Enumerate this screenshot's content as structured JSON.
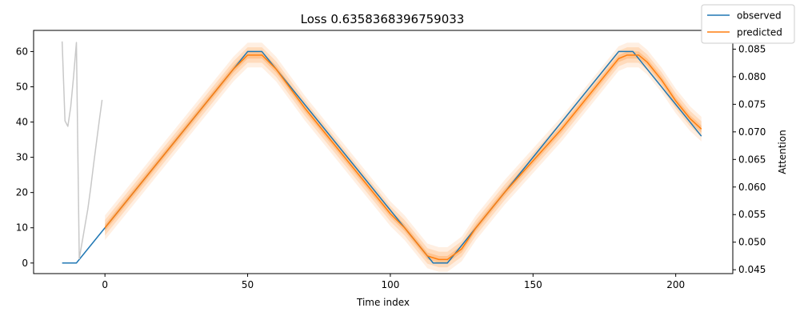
{
  "chart_data": {
    "type": "line",
    "title": "Loss 0.6358368396759033",
    "xlabel": "Time index",
    "ylabel": "",
    "y2label": "Attention",
    "xlim": [
      -25,
      220
    ],
    "ylim": [
      -3,
      66
    ],
    "y2lim": [
      0.0443,
      0.0884
    ],
    "x_ticks": [
      0,
      50,
      100,
      150,
      200
    ],
    "y_ticks": [
      0,
      10,
      20,
      30,
      40,
      50,
      60
    ],
    "y2_ticks": [
      0.045,
      0.05,
      0.055,
      0.06,
      0.065,
      0.07,
      0.075,
      0.08,
      0.085
    ],
    "grid": false,
    "legend_position": "top-right",
    "colors": {
      "observed": "#1f77b4",
      "predicted": "#ff7f0e",
      "band": "#ff7f0e",
      "attention": "#c8c8c8"
    },
    "series": [
      {
        "name": "observed",
        "axis": "left",
        "x": [
          -15,
          -10,
          -1,
          0,
          50,
          55,
          115,
          120,
          180,
          185,
          209
        ],
        "y": [
          0,
          0,
          9,
          10,
          60,
          60,
          0,
          0,
          60,
          60,
          36
        ]
      },
      {
        "name": "predicted",
        "axis": "left",
        "x": [
          0,
          5,
          10,
          20,
          30,
          40,
          45,
          50,
          55,
          60,
          70,
          80,
          90,
          100,
          105,
          110,
          113,
          117,
          120,
          125,
          130,
          140,
          150,
          160,
          170,
          175,
          180,
          183,
          187,
          190,
          195,
          200,
          205,
          209
        ],
        "y": [
          10,
          15,
          20,
          30,
          40,
          50,
          55,
          59,
          59,
          55,
          44,
          34,
          24,
          14,
          10,
          5,
          2,
          1,
          1,
          4,
          10,
          20,
          29,
          38,
          48,
          53,
          58,
          59,
          59,
          57,
          52,
          46,
          41,
          38
        ]
      },
      {
        "name": "attention",
        "axis": "right",
        "x": [
          -15,
          -14,
          -13,
          -12,
          -11,
          -10,
          -9,
          -8,
          -7,
          -6,
          -5,
          -4,
          -3,
          -2,
          -1
        ],
        "y": [
          0.0864,
          0.072,
          0.071,
          0.0745,
          0.08,
          0.0862,
          0.047,
          0.05,
          0.053,
          0.056,
          0.0598,
          0.064,
          0.068,
          0.072,
          0.0758
        ]
      }
    ],
    "bands": [
      {
        "series": "predicted",
        "halfwidth": 3.5,
        "opacity": 0.12
      },
      {
        "series": "predicted",
        "halfwidth": 2.2,
        "opacity": 0.18
      },
      {
        "series": "predicted",
        "halfwidth": 1.0,
        "opacity": 0.25
      }
    ],
    "legend": [
      {
        "label": "observed",
        "series": "observed"
      },
      {
        "label": "predicted",
        "series": "predicted"
      }
    ]
  }
}
